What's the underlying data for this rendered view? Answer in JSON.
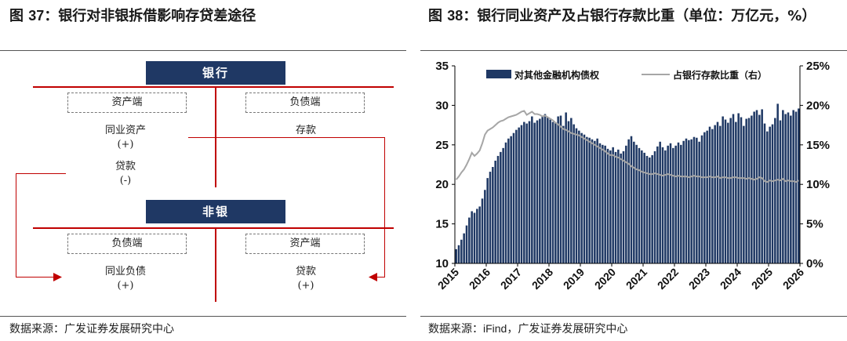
{
  "left": {
    "title_prefix": "图",
    "title_num": "37",
    "title_text": "：银行对非银拆借影响存贷差途径",
    "bank_label": "银行",
    "nonbank_label": "非银",
    "bank_asset_side": "资产端",
    "bank_liability_side": "负债端",
    "bank_asset_item1": "同业资产",
    "bank_asset_item1_sign": "(+)",
    "bank_asset_item2": "贷款",
    "bank_asset_item2_sign": "(-)",
    "bank_liability_item": "存款",
    "nonbank_liability_side": "负债端",
    "nonbank_asset_side": "资产端",
    "nonbank_liability_item": "同业负债",
    "nonbank_liability_sign": "(+)",
    "nonbank_asset_item": "贷款",
    "nonbank_asset_sign": "(+)",
    "source_prefix": "数据来源：",
    "source_text": "广发证券发展研究中心"
  },
  "right": {
    "title_prefix": "图",
    "title_num": "38",
    "title_text": "：银行同业资产及占银行存款比重（单位：万亿元，%）",
    "source_prefix": "数据来源：",
    "source_latin": "iFind",
    "source_text": "，广发证券发展研究中心"
  },
  "chart_data": {
    "type": "bar",
    "title": "",
    "xlabel": "",
    "ylabel": "",
    "ylim": [
      10,
      35
    ],
    "y2lim": [
      0,
      25
    ],
    "y_ticks": [
      "10",
      "15",
      "20",
      "25",
      "30",
      "35"
    ],
    "y2_ticks": [
      "0%",
      "5%",
      "10%",
      "15%",
      "20%",
      "25%"
    ],
    "x_ticks": [
      "2015",
      "2016",
      "2017",
      "2018",
      "2019",
      "2020",
      "2021",
      "2022",
      "2023",
      "2024",
      "2025",
      "2026"
    ],
    "legend_position": "top",
    "grid": false,
    "colors": {
      "bars": "#1f3864",
      "line": "#a6a6a6"
    },
    "series": [
      {
        "name": "对其他金融机构债权",
        "type": "bar",
        "axis": "left",
        "values": [
          11.8,
          12.3,
          13.0,
          13.8,
          14.8,
          15.8,
          16.6,
          16.4,
          16.9,
          17.2,
          18.2,
          19.3,
          20.8,
          21.6,
          22.2,
          23.0,
          23.6,
          24.1,
          24.6,
          25.3,
          25.8,
          26.1,
          26.5,
          26.9,
          27.2,
          27.5,
          27.9,
          27.7,
          28.0,
          28.6,
          27.8,
          28.1,
          28.3,
          28.6,
          28.9,
          28.5,
          28.2,
          27.9,
          27.8,
          28.6,
          28.7,
          27.4,
          29.1,
          28.0,
          28.4,
          27.6,
          27.1,
          26.8,
          26.5,
          26.3,
          26.0,
          25.9,
          25.7,
          25.5,
          25.8,
          25.2,
          25.0,
          24.9,
          24.5,
          24.3,
          24.7,
          24.1,
          24.4,
          23.9,
          24.2,
          24.9,
          25.7,
          26.1,
          25.4,
          25.0,
          24.6,
          24.3,
          24.0,
          23.6,
          23.4,
          23.7,
          24.2,
          24.8,
          25.4,
          24.7,
          24.3,
          24.9,
          25.2,
          24.6,
          24.9,
          25.3,
          25.0,
          25.5,
          25.8,
          25.6,
          25.7,
          26.0,
          25.9,
          25.4,
          26.2,
          26.6,
          26.8,
          27.3,
          27.0,
          27.5,
          27.9,
          27.4,
          28.6,
          28.2,
          27.8,
          28.4,
          28.9,
          27.9,
          29.0,
          28.5,
          27.4,
          28.3,
          28.4,
          28.7,
          29.2,
          29.4,
          28.8,
          29.5,
          27.7,
          26.7,
          27.3,
          27.6,
          28.4,
          30.2,
          28.1,
          29.4,
          28.9,
          29.1,
          28.7,
          29.4,
          29.2,
          29.6
        ]
      },
      {
        "name": "占银行存款比重（右）",
        "type": "line",
        "axis": "right",
        "values": [
          10.6,
          11.0,
          11.5,
          11.9,
          12.5,
          13.2,
          14.0,
          13.6,
          13.9,
          14.3,
          15.2,
          16.3,
          16.8,
          17.0,
          17.2,
          17.5,
          17.8,
          18.0,
          18.1,
          18.3,
          18.5,
          18.6,
          18.7,
          18.8,
          19.0,
          19.2,
          19.3,
          18.8,
          19.0,
          19.2,
          18.9,
          18.9,
          18.8,
          18.6,
          18.7,
          18.5,
          18.3,
          18.1,
          17.8,
          17.6,
          17.3,
          17.0,
          16.9,
          16.7,
          16.5,
          16.4,
          16.3,
          16.2,
          16.0,
          15.8,
          15.6,
          15.4,
          15.2,
          15.0,
          14.8,
          14.6,
          14.4,
          14.2,
          13.9,
          13.7,
          13.7,
          13.5,
          13.4,
          13.2,
          13.0,
          12.8,
          12.6,
          12.3,
          12.1,
          11.9,
          11.8,
          11.6,
          11.5,
          11.4,
          11.3,
          11.3,
          11.4,
          11.3,
          11.2,
          11.1,
          11.2,
          11.3,
          11.2,
          11.1,
          11.0,
          11.1,
          11.0,
          11.0,
          11.0,
          10.9,
          11.0,
          11.1,
          11.0,
          11.0,
          10.9,
          10.9,
          10.9,
          11.0,
          10.9,
          10.9,
          11.0,
          10.8,
          10.9,
          10.9,
          10.8,
          10.8,
          10.9,
          10.9,
          10.8,
          10.8,
          10.8,
          10.7,
          10.8,
          10.7,
          10.6,
          10.7,
          10.9,
          10.8,
          10.4,
          10.3,
          10.5,
          10.4,
          10.5,
          10.6,
          10.5,
          10.7,
          10.4,
          10.5,
          10.4,
          10.4,
          10.3,
          10.5
        ]
      }
    ]
  }
}
